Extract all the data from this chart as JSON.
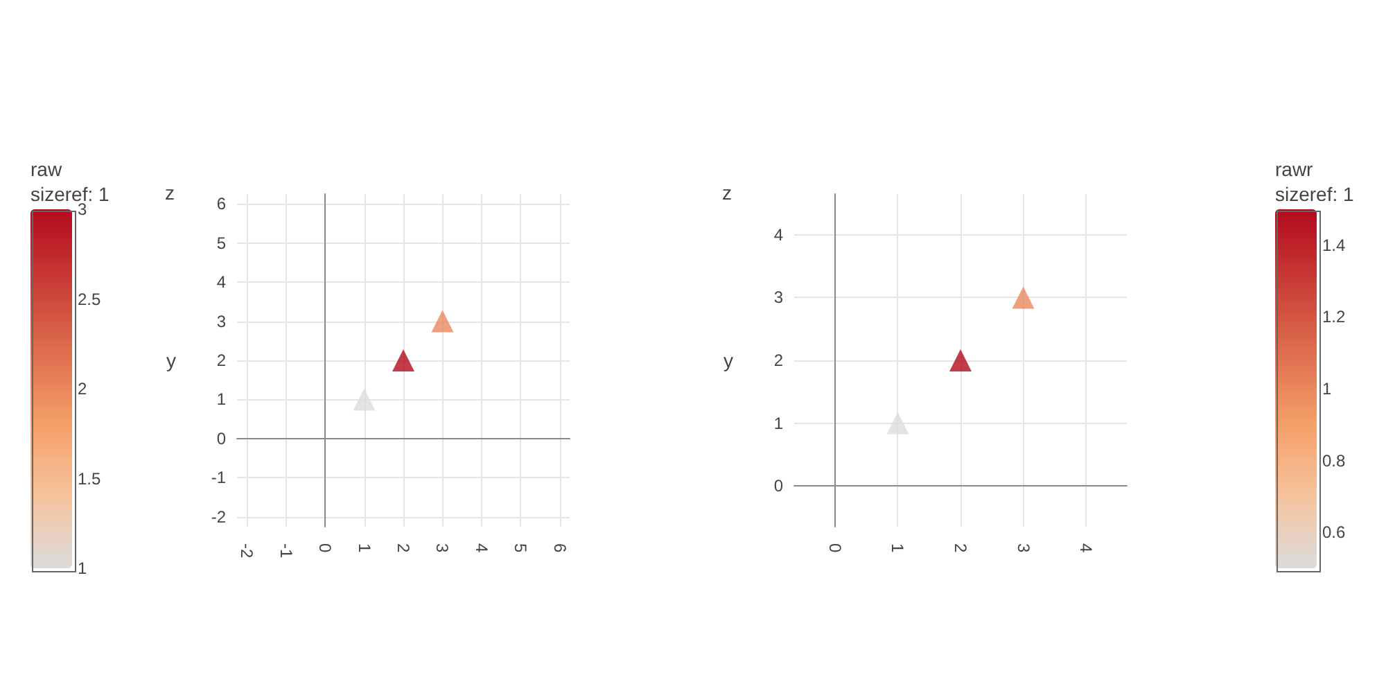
{
  "chart_data": [
    {
      "type": "scatter",
      "x": [
        1,
        2,
        3
      ],
      "values": [
        1,
        2,
        3
      ],
      "cvalues": [
        1,
        3,
        2
      ],
      "clabel": "raw\nsizeref: 1",
      "clim": [
        1,
        3
      ],
      "cticks": [
        1,
        1.5,
        2,
        2.5,
        3
      ],
      "xlim": [
        -2.25,
        6.25
      ],
      "ylim": [
        -2.25,
        6.25
      ],
      "xticks": [
        -2,
        -1,
        0,
        1,
        2,
        3,
        4,
        5,
        6
      ],
      "yticks": [
        -2,
        -1,
        0,
        1,
        2,
        3,
        4,
        5,
        6
      ],
      "ylabel": "y",
      "annotations": [
        "z"
      ],
      "marker": "triangle",
      "grid": true
    },
    {
      "type": "scatter",
      "x": [
        1,
        2,
        3
      ],
      "values": [
        1,
        2,
        3
      ],
      "cvalues": [
        0.5,
        1.5,
        1
      ],
      "clabel": "rawr\nsizeref: 1",
      "clim": [
        0.5,
        1.5
      ],
      "cticks": [
        0.6,
        0.8,
        1,
        1.2,
        1.4
      ],
      "xlim": [
        -0.65,
        4.65
      ],
      "ylim": [
        -0.65,
        4.65
      ],
      "xticks": [
        0,
        1,
        2,
        3,
        4
      ],
      "yticks": [
        0,
        1,
        2,
        3,
        4
      ],
      "ylabel": "y",
      "annotations": [
        "z"
      ],
      "marker": "triangle",
      "grid": true
    }
  ]
}
